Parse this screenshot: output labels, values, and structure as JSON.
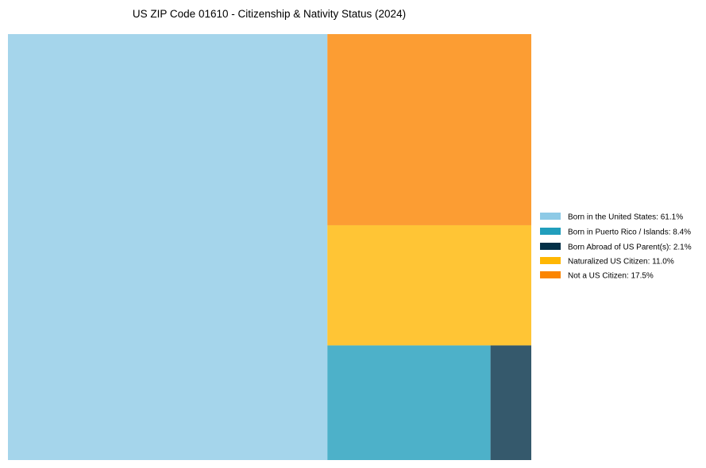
{
  "chart_data": {
    "type": "treemap",
    "title": "US ZIP Code 01610 - Citizenship & Nativity Status (2024)",
    "legend_position": "right",
    "legend": [
      {
        "label": "Born in the United States: 61.1%",
        "color": "#8ecae6"
      },
      {
        "label": "Born in Puerto Rico / Islands: 8.4%",
        "color": "#219ebc"
      },
      {
        "label": "Born Abroad of US Parent(s): 2.1%",
        "color": "#023047"
      },
      {
        "label": "Naturalized US Citizen: 11.0%",
        "color": "#ffb703"
      },
      {
        "label": "Not a US Citizen: 17.5%",
        "color": "#fb8500"
      }
    ],
    "categories": [
      "Born in the United States",
      "Born in Puerto Rico / Islands",
      "Born Abroad of US Parent(s)",
      "Naturalized US Citizen",
      "Not a US Citizen"
    ],
    "values": [
      61.1,
      8.4,
      2.1,
      11.0,
      17.5
    ],
    "colors": [
      "#8ecae6",
      "#219ebc",
      "#023047",
      "#ffb703",
      "#fb8500"
    ],
    "tile_opacity": 0.8
  }
}
